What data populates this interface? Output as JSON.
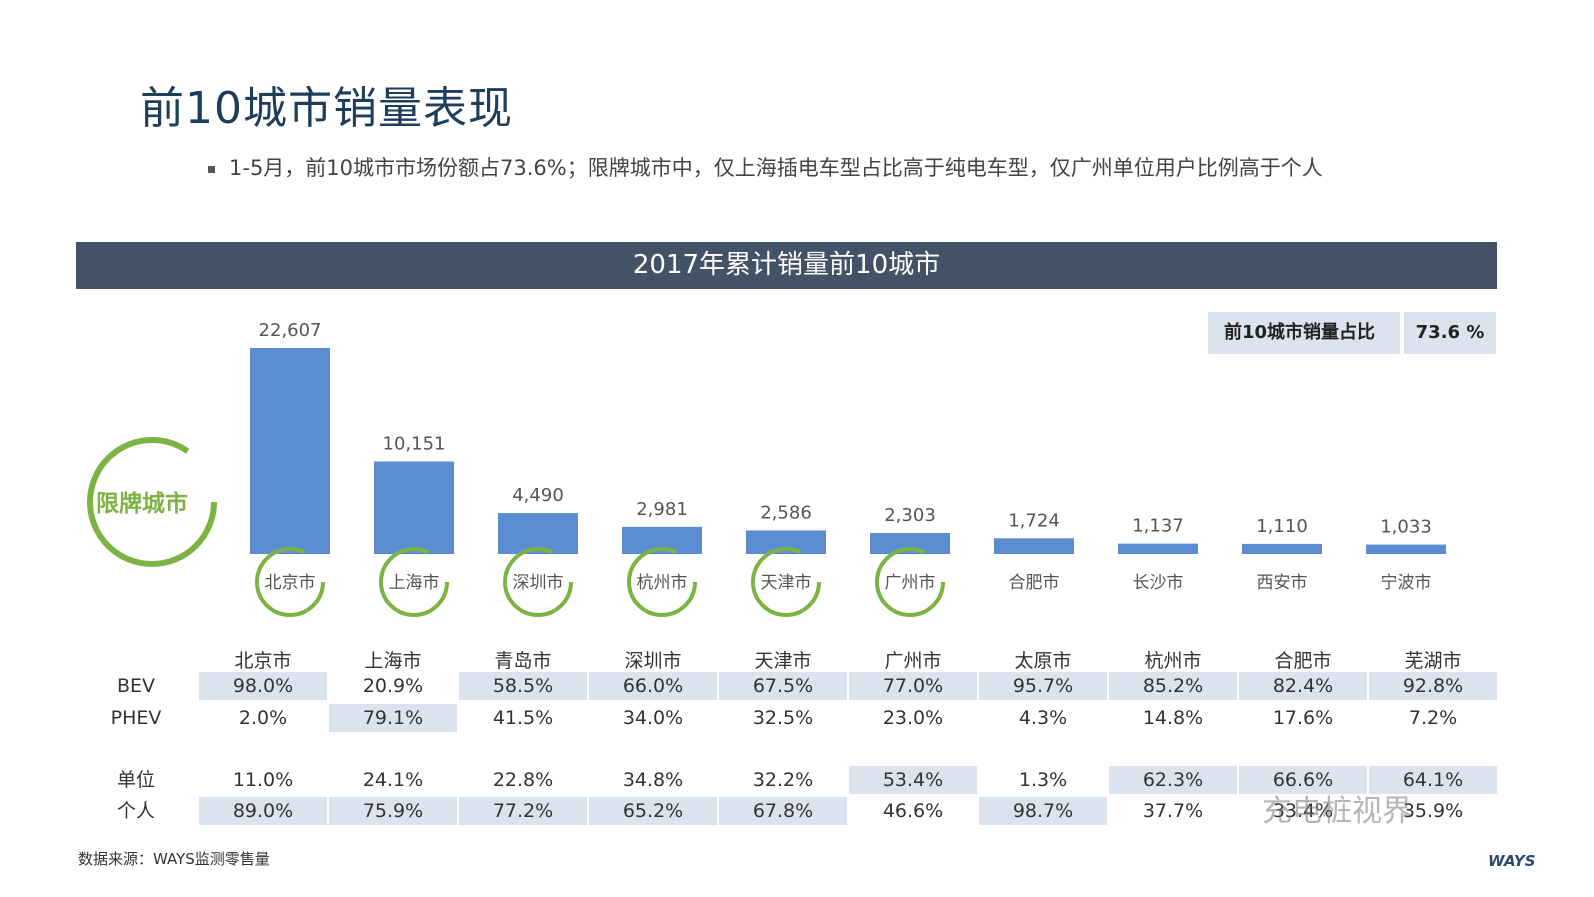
{
  "title": "前10城市销量表现",
  "subtitle": "1-5月，前10城市市场份额占73.6%；限牌城市中，仅上海插电车型占比高于纯电车型，仅广州单位用户比例高于个人",
  "banner": "2017年累计销量前10城市",
  "share_box": {
    "label": "前10城市销量占比",
    "value": "73.6 %"
  },
  "restricted_label": "限牌城市",
  "colors": {
    "bar": "#5b8ed0",
    "banner": "#445267",
    "highlight": "#dbe3ee",
    "ring": "#7cb342",
    "title": "#1f3e5a"
  },
  "chart_data": {
    "type": "bar",
    "title": "2017年累计销量前10城市",
    "categories": [
      "北京市",
      "上海市",
      "深圳市",
      "杭州市",
      "天津市",
      "广州市",
      "合肥市",
      "长沙市",
      "西安市",
      "宁波市"
    ],
    "values": [
      22607,
      10151,
      4490,
      2981,
      2586,
      2303,
      1724,
      1137,
      1110,
      1033
    ],
    "value_labels": [
      "22,607",
      "10,151",
      "4,490",
      "2,981",
      "2,586",
      "2,303",
      "1,724",
      "1,137",
      "1,110",
      "1,033"
    ],
    "restricted": [
      true,
      true,
      true,
      true,
      true,
      true,
      false,
      false,
      false,
      false
    ],
    "ylim": [
      0,
      22607
    ]
  },
  "table": {
    "cities": [
      "北京市",
      "上海市",
      "青岛市",
      "深圳市",
      "天津市",
      "广州市",
      "太原市",
      "杭州市",
      "合肥市",
      "芜湖市"
    ],
    "rows": [
      {
        "label": "BEV",
        "values": [
          "98.0%",
          "20.9%",
          "58.5%",
          "66.0%",
          "67.5%",
          "77.0%",
          "95.7%",
          "85.2%",
          "82.4%",
          "92.8%"
        ],
        "highlight": [
          true,
          false,
          true,
          true,
          true,
          true,
          true,
          true,
          true,
          true
        ]
      },
      {
        "label": "PHEV",
        "values": [
          "2.0%",
          "79.1%",
          "41.5%",
          "34.0%",
          "32.5%",
          "23.0%",
          "4.3%",
          "14.8%",
          "17.6%",
          "7.2%"
        ],
        "highlight": [
          false,
          true,
          false,
          false,
          false,
          false,
          false,
          false,
          false,
          false
        ]
      },
      {
        "label": "单位",
        "values": [
          "11.0%",
          "24.1%",
          "22.8%",
          "34.8%",
          "32.2%",
          "53.4%",
          "1.3%",
          "62.3%",
          "66.6%",
          "64.1%"
        ],
        "highlight": [
          false,
          false,
          false,
          false,
          false,
          true,
          false,
          true,
          true,
          true
        ]
      },
      {
        "label": "个人",
        "values": [
          "89.0%",
          "75.9%",
          "77.2%",
          "65.2%",
          "67.8%",
          "46.6%",
          "98.7%",
          "37.7%",
          "33.4%",
          "35.9%"
        ],
        "highlight": [
          true,
          true,
          true,
          true,
          true,
          false,
          true,
          false,
          false,
          false
        ]
      }
    ]
  },
  "source": "数据来源：WAYS监测零售量",
  "brand": "WAYS",
  "watermark": "充电桩视界"
}
